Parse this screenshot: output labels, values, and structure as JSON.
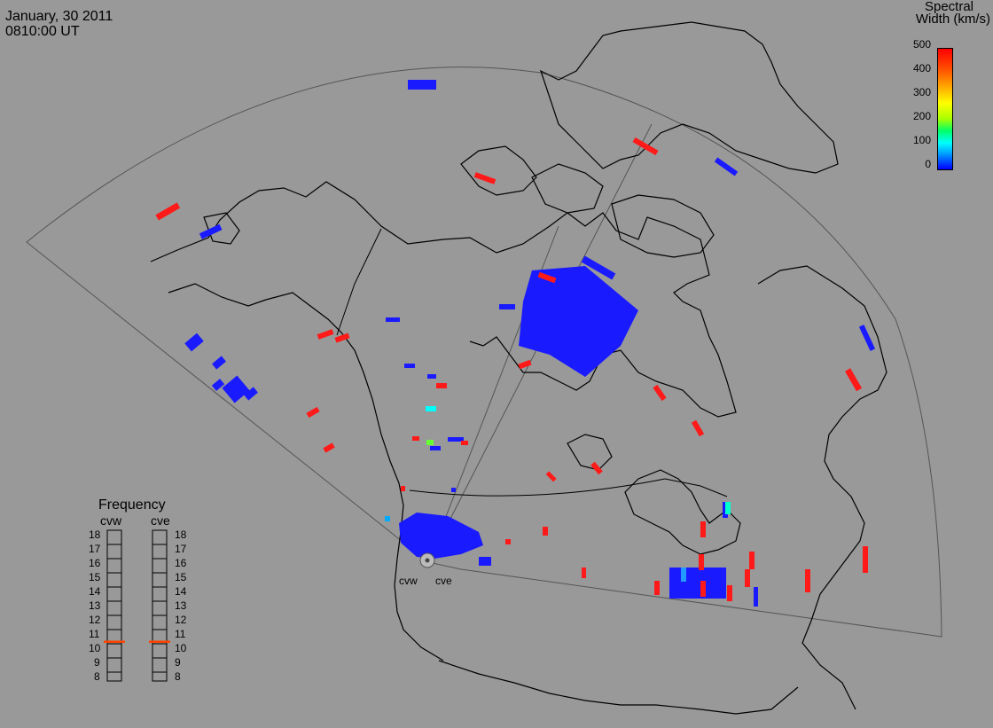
{
  "header": {
    "date": "January, 30 2011",
    "time": "0810:00 UT"
  },
  "colorbar": {
    "title_line1": "Spectral",
    "title_line2": "Width (km/s)",
    "ticks": [
      "500",
      "400",
      "300",
      "200",
      "100",
      "0"
    ],
    "colors": [
      "#0000ff",
      "#00ffff",
      "#00ff00",
      "#ffff00",
      "#ff0000"
    ]
  },
  "frequency_panel": {
    "title": "Frequency",
    "stations": [
      "cvw",
      "cve"
    ],
    "ticks": [
      "18",
      "17",
      "16",
      "15",
      "14",
      "13",
      "12",
      "11",
      "10",
      "9",
      "8"
    ],
    "values_mhz": [
      10.6,
      10.6
    ],
    "marker_color": "#ff4400"
  },
  "radars": {
    "west": "cvw",
    "east": "cve"
  },
  "colors": {
    "background": "#999999",
    "coast": "#000000",
    "fov": "#555555",
    "low_width": "#1a1aff",
    "high_width": "#ff1a1a",
    "mid_cyan": "#00ffff",
    "mid_green": "#66ff33"
  }
}
